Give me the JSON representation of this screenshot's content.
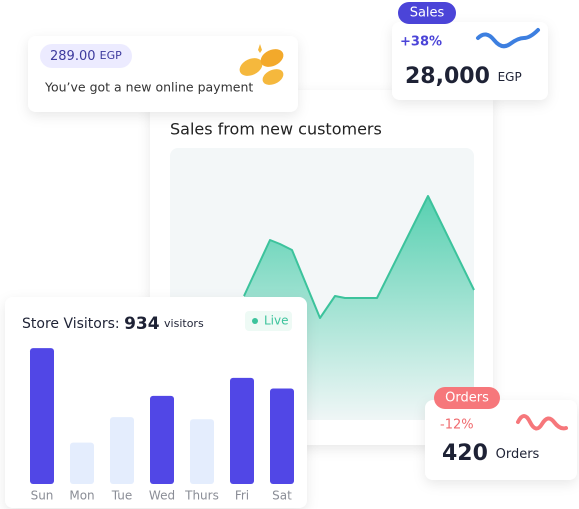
{
  "payment": {
    "amount": "289.00",
    "currency": "EGP",
    "message": "You’ve got a new online payment"
  },
  "sales": {
    "badge": "Sales",
    "change": "+38%",
    "amount": "28,000",
    "currency": "EGP"
  },
  "sales_chart": {
    "type": "area",
    "title": "Sales from new customers",
    "color": "#3cc39c",
    "x": [
      0,
      26,
      36,
      48,
      76,
      91,
      101,
      133,
      184,
      230
    ],
    "values": [
      149,
      205,
      201,
      195,
      127,
      149,
      147,
      147,
      249,
      155
    ],
    "xlim": [
      0,
      230
    ],
    "ylim": [
      0,
      300
    ]
  },
  "visitors": {
    "title": "Store Visitors:",
    "count": "934",
    "unit": "visitors",
    "live": "Live",
    "chart": {
      "type": "bar",
      "categories": [
        "Sun",
        "Mon",
        "Tue",
        "Wed",
        "Thurs",
        "Fri",
        "Sat"
      ],
      "values": [
        128,
        39,
        63,
        83,
        61,
        100,
        90
      ],
      "colors": [
        "#5147e6",
        "#e4edfd",
        "#e4edfd",
        "#5147e6",
        "#e4edfd",
        "#5147e6",
        "#5147e6"
      ],
      "ylim": [
        0,
        130
      ]
    }
  },
  "orders": {
    "badge": "Orders",
    "change": "-12%",
    "count": "420",
    "unit": "Orders"
  }
}
